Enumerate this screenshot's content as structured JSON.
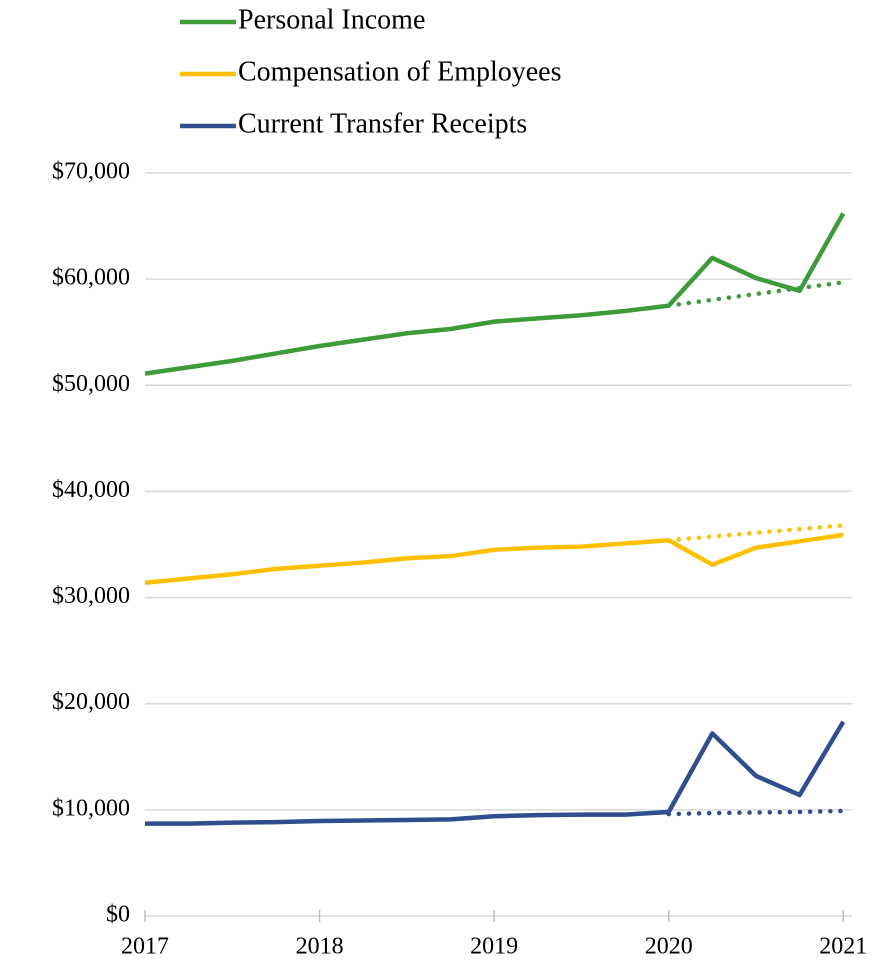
{
  "chart_data": {
    "type": "line",
    "x": [
      2017,
      2017.25,
      2017.5,
      2017.75,
      2018,
      2018.25,
      2018.5,
      2018.75,
      2019,
      2019.25,
      2019.5,
      2019.75,
      2020,
      2020.25,
      2020.5,
      2020.75,
      2021
    ],
    "series": [
      {
        "name": "Personal Income",
        "color": "#3d9b3a",
        "style": "solid",
        "values": [
          51100,
          51700,
          52300,
          53000,
          53700,
          54300,
          54900,
          55300,
          56000,
          56300,
          56600,
          57000,
          57500,
          62000,
          60100,
          58900,
          66200
        ]
      },
      {
        "name": "Compensation of Employees",
        "color": "#ffc000",
        "style": "solid",
        "values": [
          31400,
          31800,
          32200,
          32700,
          33000,
          33300,
          33700,
          33900,
          34500,
          34700,
          34800,
          35100,
          35400,
          33100,
          34700,
          35300,
          35900
        ]
      },
      {
        "name": "Current Transfer Receipts",
        "color": "#2f4e8e",
        "style": "solid",
        "values": [
          8700,
          8700,
          8800,
          8850,
          8950,
          9000,
          9050,
          9100,
          9400,
          9500,
          9550,
          9550,
          9800,
          17200,
          13200,
          11400,
          18300
        ]
      },
      {
        "color": "#3d9b3a",
        "style": "dotted",
        "values": [
          null,
          null,
          null,
          null,
          null,
          null,
          null,
          null,
          null,
          null,
          null,
          null,
          57500,
          58050,
          58600,
          59150,
          59700
        ]
      },
      {
        "color": "#ffc000",
        "style": "dotted",
        "values": [
          null,
          null,
          null,
          null,
          null,
          null,
          null,
          null,
          null,
          null,
          null,
          null,
          35400,
          35750,
          36100,
          36450,
          36800
        ]
      },
      {
        "color": "#2f4e8e",
        "style": "dotted",
        "values": [
          null,
          null,
          null,
          null,
          null,
          null,
          null,
          null,
          null,
          null,
          null,
          null,
          9600,
          9700,
          9750,
          9800,
          9900
        ]
      }
    ],
    "xlim": [
      2017,
      2021.05
    ],
    "xticks": [
      2017,
      2018,
      2019,
      2020,
      2021
    ],
    "ylim": [
      0,
      70000
    ],
    "yticks": [
      {
        "value": 0,
        "label": "$0"
      },
      {
        "value": 10000,
        "label": "$10,000"
      },
      {
        "value": 20000,
        "label": "$20,000"
      },
      {
        "value": 30000,
        "label": "$30,000"
      },
      {
        "value": 40000,
        "label": "$40,000"
      },
      {
        "value": 50000,
        "label": "$50,000"
      },
      {
        "value": 60000,
        "label": "$60,000"
      },
      {
        "value": 70000,
        "label": "$70,000"
      }
    ],
    "grid": true,
    "legend": "top"
  }
}
